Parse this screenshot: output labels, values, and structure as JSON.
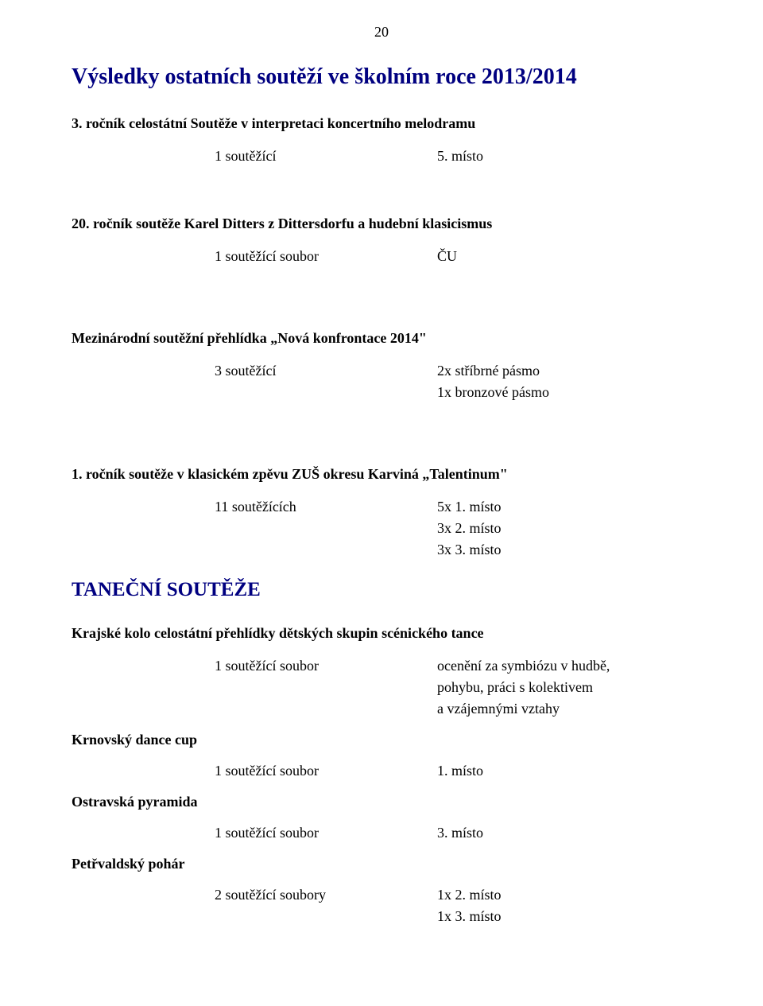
{
  "page_number": "20",
  "main_title": "Výsledky ostatních soutěží ve školním roce 2013/2014",
  "comp1": {
    "title": "3. ročník celostátní Soutěže v interpretaci koncertního melodramu",
    "col_a": "1 soutěžící",
    "col_b": "5. místo"
  },
  "comp2": {
    "title": "20. ročník soutěže Karel Ditters z Dittersdorfu a hudební klasicismus",
    "col_a": "1 soutěžící soubor",
    "col_b": "ČU"
  },
  "comp3": {
    "title": "Mezinárodní soutěžní přehlídka „Nová konfrontace 2014\"",
    "col_a": "3 soutěžící",
    "col_b1": "2x stříbrné pásmo",
    "col_b2": "1x bronzové pásmo"
  },
  "comp4": {
    "title": "1. ročník soutěže v klasickém zpěvu ZUŠ okresu Karviná „Talentinum\"",
    "col_a": "11 soutěžících",
    "col_b1": "5x 1. místo",
    "col_b2": "3x 2. místo",
    "col_b3": "3x 3. místo"
  },
  "dance_section_title": "TANEČNÍ SOUTĚŽE",
  "dance1": {
    "title": "Krajské kolo celostátní přehlídky dětských skupin scénického tance",
    "col_a": "1 soutěžící soubor",
    "col_b1": "ocenění za symbiózu v hudbě,",
    "col_b2": "pohybu, práci s kolektivem",
    "col_b3": "a vzájemnými vztahy"
  },
  "dance2": {
    "title": "Krnovský dance cup",
    "col_a": "1 soutěžící soubor",
    "col_b": "1. místo"
  },
  "dance3": {
    "title": "Ostravská pyramida",
    "col_a": "1 soutěžící soubor",
    "col_b": "3. místo"
  },
  "dance4": {
    "title": "Petřvaldský pohár",
    "col_a": "2 soutěžící soubory",
    "col_b1": "1x 2. místo",
    "col_b2": "1x 3. místo"
  }
}
